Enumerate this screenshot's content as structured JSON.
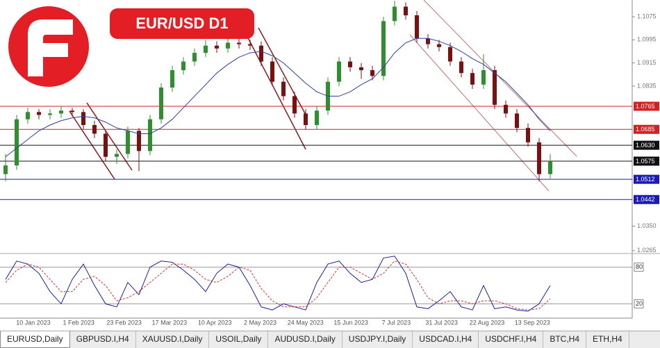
{
  "chart_data": [
    {
      "type": "candlestick",
      "title": "EUR/USD D1",
      "open": [
        1.053,
        1.056,
        1.072,
        1.0745,
        1.0735,
        1.074,
        1.075,
        1.0745,
        1.07,
        1.067,
        1.059,
        1.06,
        1.068,
        1.061,
        1.072,
        1.083,
        1.089,
        1.092,
        1.095,
        1.0975,
        1.0965,
        1.0985,
        1.098,
        1.0975,
        1.092,
        1.085,
        1.08,
        1.074,
        1.07,
        1.075,
        1.085,
        1.092,
        1.09,
        1.089,
        1.087,
        1.106,
        1.111,
        1.108,
        1.1,
        1.098,
        1.097,
        1.092,
        1.088,
        1.084,
        1.089,
        1.077,
        1.074,
        1.069,
        1.064,
        1.053
      ],
      "high": [
        1.06,
        1.0735,
        1.076,
        1.0755,
        1.0755,
        1.0765,
        1.076,
        1.0755,
        1.0715,
        1.068,
        1.0615,
        1.0695,
        1.069,
        1.0735,
        1.0845,
        1.0905,
        1.0935,
        1.0965,
        1.0995,
        1.099,
        1.1,
        1.1,
        1.0995,
        1.099,
        1.0935,
        1.0865,
        1.0815,
        1.0755,
        1.0765,
        1.0865,
        1.0935,
        1.0935,
        1.0915,
        1.0905,
        1.1075,
        1.113,
        1.1125,
        1.1095,
        1.1015,
        1.0995,
        1.0985,
        1.0935,
        1.0895,
        1.0945,
        1.0905,
        1.0785,
        1.0755,
        1.0705,
        1.0655,
        1.06
      ],
      "low": [
        1.0505,
        1.0545,
        1.0705,
        1.072,
        1.072,
        1.0725,
        1.073,
        1.0685,
        1.0655,
        1.0575,
        1.0565,
        1.0585,
        1.054,
        1.0595,
        1.0705,
        1.0815,
        1.0875,
        1.0905,
        1.0935,
        1.095,
        1.095,
        1.0965,
        1.096,
        1.0905,
        1.0835,
        1.0785,
        1.0725,
        1.0685,
        1.0685,
        1.0735,
        1.0835,
        1.0885,
        1.086,
        1.0855,
        1.0855,
        1.1045,
        1.1065,
        1.0985,
        1.0965,
        1.0955,
        1.0905,
        1.0865,
        1.0825,
        1.0825,
        1.0755,
        1.0725,
        1.0675,
        1.0625,
        1.0505,
        1.0515
      ],
      "close": [
        1.056,
        1.072,
        1.0745,
        1.0735,
        1.074,
        1.075,
        1.0745,
        1.07,
        1.067,
        1.059,
        1.06,
        1.068,
        1.061,
        1.072,
        1.083,
        1.089,
        1.092,
        1.095,
        1.0975,
        1.0965,
        1.0985,
        1.098,
        1.0975,
        1.092,
        1.085,
        1.08,
        1.074,
        1.07,
        1.075,
        1.085,
        1.092,
        1.09,
        1.089,
        1.087,
        1.106,
        1.111,
        1.108,
        1.1,
        1.098,
        1.097,
        1.092,
        1.088,
        1.084,
        1.089,
        1.077,
        1.074,
        1.069,
        1.064,
        1.053,
        1.0575
      ],
      "up_color": "#2f8f2f",
      "down_color": "#7a1010",
      "ma": {
        "color": "#2b3f9e",
        "values": [
          1.059,
          1.062,
          1.065,
          1.068,
          1.07,
          1.0715,
          1.0725,
          1.073,
          1.0725,
          1.071,
          1.069,
          1.068,
          1.067,
          1.067,
          1.069,
          1.072,
          1.076,
          1.08,
          1.084,
          1.088,
          1.091,
          1.0935,
          1.095,
          1.0955,
          1.094,
          1.0915,
          1.088,
          1.0845,
          1.0815,
          1.08,
          1.08,
          1.0815,
          1.084,
          1.086,
          1.09,
          1.095,
          1.0985,
          1.1,
          1.1,
          1.099,
          1.0975,
          1.0955,
          1.093,
          1.091,
          1.088,
          1.085,
          1.081,
          1.077,
          1.072,
          1.068
        ]
      },
      "ylim": [
        1.0255,
        1.1133
      ],
      "yticks": [
        1.1075,
        1.0995,
        1.0915,
        1.0835,
        {
          "value": 1.035,
          "label": "1.0350"
        },
        1.0265
      ],
      "levels": [
        {
          "value": 1.0765,
          "label": "1.0765",
          "color": "#d42020"
        },
        {
          "value": 1.0685,
          "label": "1.0685",
          "color": "#d42020"
        },
        {
          "value": 1.063,
          "label": "1.0630",
          "color": "#111111"
        },
        {
          "value": 1.0575,
          "label": "1.0575",
          "color": "#111111"
        },
        {
          "value": 1.0512,
          "label": "1.0512",
          "color": "#1a1ab8"
        },
        {
          "value": 1.0442,
          "label": "1.0442",
          "color": "#1a1ab8"
        }
      ],
      "xticks": [
        "10 Jan 2023",
        "1 Feb 2023",
        "23 Feb 2023",
        "17 Mar 2023",
        "10 Apr 2023",
        "2 May 2023",
        "24 May 2023",
        "15 Jun 2023",
        "7 Jul 2023",
        "31 Jul 2023",
        "22 Aug 2023",
        "13 Sep 2023"
      ]
    },
    {
      "type": "line",
      "series": [
        {
          "color": "#1a1a9e",
          "values": [
            60,
            90,
            85,
            70,
            40,
            20,
            60,
            85,
            50,
            20,
            15,
            55,
            35,
            80,
            90,
            88,
            75,
            60,
            40,
            70,
            85,
            80,
            50,
            15,
            10,
            20,
            15,
            10,
            55,
            85,
            90,
            70,
            55,
            60,
            95,
            98,
            70,
            15,
            12,
            25,
            40,
            15,
            10,
            50,
            12,
            15,
            10,
            8,
            20,
            50
          ]
        },
        {
          "color": "#d43030",
          "dash": true,
          "values": [
            55,
            75,
            85,
            80,
            60,
            40,
            40,
            60,
            65,
            50,
            25,
            30,
            40,
            55,
            70,
            85,
            85,
            75,
            60,
            55,
            65,
            80,
            75,
            45,
            25,
            15,
            15,
            15,
            30,
            55,
            80,
            80,
            70,
            60,
            70,
            90,
            85,
            60,
            30,
            20,
            25,
            25,
            20,
            25,
            25,
            20,
            12,
            10,
            12,
            28
          ]
        }
      ],
      "ylim": [
        0,
        100
      ],
      "yticks": [
        80,
        20
      ]
    }
  ],
  "tabs": [
    "EURUSD,Daily",
    "GBPUSD.I,H4",
    "XAUUSD.I,Daily",
    "USOIL,Daily",
    "AUDUSD.I,Daily",
    "USDJPY.I,Daily",
    "USDCAD.I,H4",
    "USDCHF.I,H4",
    "BTC,H4",
    "ETH,H4"
  ]
}
